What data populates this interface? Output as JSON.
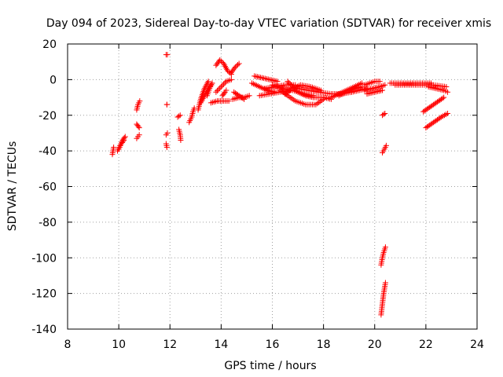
{
  "chart_data": {
    "type": "scatter",
    "title": "Day 094 of 2023, Sidereal Day-to-day VTEC variation (SDTVAR) for receiver xmis",
    "xlabel": "GPS time / hours",
    "ylabel": "SDTVAR / TECUs",
    "xlim": [
      8,
      24
    ],
    "ylim": [
      -140,
      20
    ],
    "xticks": [
      "8",
      "10",
      "12",
      "14",
      "16",
      "18",
      "20",
      "22",
      "24"
    ],
    "yticks": [
      "20",
      "0",
      "-20",
      "-40",
      "-60",
      "-80",
      "-100",
      "-120",
      "-140"
    ],
    "grid": true,
    "marker": "+",
    "color": "#ff0000",
    "segments": [
      [
        [
          9.75,
          -42
        ],
        [
          9.8,
          -38
        ]
      ],
      [
        [
          9.95,
          -40
        ],
        [
          10.05,
          -37
        ],
        [
          10.15,
          -34
        ],
        [
          10.25,
          -32
        ]
      ],
      [
        [
          10.0,
          -39
        ],
        [
          10.1,
          -36
        ],
        [
          10.2,
          -34
        ]
      ],
      [
        [
          10.7,
          -17
        ],
        [
          10.75,
          -14
        ],
        [
          10.82,
          -12
        ]
      ],
      [
        [
          10.7,
          -33
        ],
        [
          10.75,
          -32
        ],
        [
          10.8,
          -31
        ]
      ],
      [
        [
          10.7,
          -25
        ],
        [
          10.8,
          -27
        ]
      ],
      [
        [
          11.85,
          14
        ],
        [
          11.9,
          14
        ]
      ],
      [
        [
          11.88,
          -14
        ],
        [
          11.88,
          -14
        ]
      ],
      [
        [
          11.85,
          -31
        ],
        [
          11.9,
          -30
        ]
      ],
      [
        [
          11.85,
          -36
        ],
        [
          11.88,
          -38
        ]
      ],
      [
        [
          12.3,
          -21
        ],
        [
          12.4,
          -20
        ]
      ],
      [
        [
          12.35,
          -28
        ],
        [
          12.4,
          -31
        ],
        [
          12.42,
          -34
        ]
      ],
      [
        [
          12.75,
          -24
        ],
        [
          12.85,
          -21
        ],
        [
          12.9,
          -18
        ],
        [
          12.95,
          -16
        ]
      ],
      [
        [
          13.1,
          -17
        ],
        [
          13.2,
          -11
        ],
        [
          13.35,
          -5
        ],
        [
          13.5,
          -1
        ]
      ],
      [
        [
          13.2,
          -13
        ],
        [
          13.35,
          -9
        ],
        [
          13.5,
          -5
        ],
        [
          13.65,
          -2
        ]
      ],
      [
        [
          13.45,
          -9
        ],
        [
          13.55,
          -5
        ],
        [
          13.65,
          -2
        ]
      ],
      [
        [
          13.6,
          -13
        ],
        [
          13.85,
          -12
        ],
        [
          14.1,
          -12
        ],
        [
          14.3,
          -12
        ]
      ],
      [
        [
          13.8,
          8
        ],
        [
          13.95,
          11
        ],
        [
          14.1,
          9
        ],
        [
          14.25,
          5
        ],
        [
          14.4,
          3
        ]
      ],
      [
        [
          13.8,
          -7
        ],
        [
          14.0,
          -4
        ],
        [
          14.2,
          -1
        ],
        [
          14.4,
          0
        ]
      ],
      [
        [
          14.05,
          -9
        ],
        [
          14.15,
          -7
        ],
        [
          14.2,
          -6
        ]
      ],
      [
        [
          14.4,
          4
        ],
        [
          14.55,
          7
        ],
        [
          14.7,
          9
        ]
      ],
      [
        [
          14.45,
          -11
        ],
        [
          14.7,
          -10
        ],
        [
          14.9,
          -10
        ],
        [
          15.1,
          -9
        ]
      ],
      [
        [
          14.5,
          -7
        ],
        [
          14.7,
          -9
        ],
        [
          14.9,
          -11
        ]
      ],
      [
        [
          15.2,
          -2
        ],
        [
          15.5,
          -4
        ],
        [
          15.8,
          -6
        ],
        [
          16.1,
          -7
        ]
      ],
      [
        [
          15.3,
          2
        ],
        [
          15.6,
          1
        ],
        [
          15.9,
          0
        ],
        [
          16.2,
          -1
        ]
      ],
      [
        [
          15.5,
          -9
        ],
        [
          15.9,
          -8
        ],
        [
          16.3,
          -7
        ],
        [
          16.7,
          -6
        ]
      ],
      [
        [
          15.7,
          -5
        ],
        [
          16.1,
          -4
        ],
        [
          16.5,
          -3
        ],
        [
          16.9,
          -3
        ]
      ],
      [
        [
          16.0,
          -3
        ],
        [
          16.4,
          -5
        ],
        [
          16.8,
          -6
        ],
        [
          17.2,
          -8
        ],
        [
          17.6,
          -9
        ]
      ],
      [
        [
          16.3,
          -6
        ],
        [
          16.6,
          -9
        ],
        [
          16.9,
          -12
        ],
        [
          17.3,
          -14
        ],
        [
          17.7,
          -14
        ],
        [
          18.0,
          -11
        ]
      ],
      [
        [
          16.5,
          -8
        ],
        [
          16.8,
          -5
        ],
        [
          17.1,
          -3
        ],
        [
          17.5,
          -4
        ],
        [
          17.9,
          -6
        ]
      ],
      [
        [
          16.6,
          -1
        ],
        [
          16.8,
          -4
        ],
        [
          17.0,
          -7
        ],
        [
          17.3,
          -9
        ],
        [
          17.6,
          -10
        ],
        [
          18.0,
          -10
        ],
        [
          18.3,
          -11
        ]
      ],
      [
        [
          17.0,
          -5
        ],
        [
          17.4,
          -6
        ],
        [
          17.8,
          -7
        ],
        [
          18.3,
          -8
        ],
        [
          18.7,
          -8
        ],
        [
          19.1,
          -7
        ]
      ],
      [
        [
          18.3,
          -10
        ],
        [
          18.6,
          -8
        ],
        [
          18.9,
          -6
        ],
        [
          19.2,
          -4
        ],
        [
          19.5,
          -2
        ]
      ],
      [
        [
          18.6,
          -9
        ],
        [
          18.9,
          -7
        ],
        [
          19.2,
          -5
        ],
        [
          19.5,
          -4
        ]
      ],
      [
        [
          19.1,
          -7
        ],
        [
          19.4,
          -6
        ],
        [
          19.7,
          -5
        ]
      ],
      [
        [
          19.6,
          -3
        ],
        [
          19.8,
          -2
        ],
        [
          20.0,
          -1
        ],
        [
          20.2,
          -1
        ]
      ],
      [
        [
          19.6,
          -6
        ],
        [
          19.9,
          -5
        ],
        [
          20.2,
          -4
        ],
        [
          20.4,
          -3
        ]
      ],
      [
        [
          19.7,
          -8
        ],
        [
          20.0,
          -7
        ],
        [
          20.3,
          -6
        ]
      ],
      [
        [
          20.3,
          -20
        ],
        [
          20.4,
          -19
        ]
      ],
      [
        [
          20.3,
          -41
        ],
        [
          20.38,
          -39
        ],
        [
          20.45,
          -37
        ]
      ],
      [
        [
          20.25,
          -104
        ],
        [
          20.3,
          -100
        ],
        [
          20.35,
          -97
        ],
        [
          20.42,
          -94
        ]
      ],
      [
        [
          20.25,
          -132
        ],
        [
          20.3,
          -126
        ],
        [
          20.35,
          -120
        ],
        [
          20.42,
          -114
        ]
      ],
      [
        [
          20.6,
          -2
        ],
        [
          21.0,
          -2
        ],
        [
          21.4,
          -2
        ],
        [
          21.8,
          -2
        ],
        [
          22.2,
          -2
        ]
      ],
      [
        [
          20.8,
          -3
        ],
        [
          21.3,
          -3
        ],
        [
          21.8,
          -3
        ],
        [
          22.3,
          -3
        ],
        [
          22.8,
          -4
        ]
      ],
      [
        [
          21.9,
          -18
        ],
        [
          22.1,
          -16
        ],
        [
          22.3,
          -14
        ],
        [
          22.5,
          -12
        ],
        [
          22.7,
          -10
        ]
      ],
      [
        [
          22.0,
          -27
        ],
        [
          22.2,
          -25
        ],
        [
          22.4,
          -23
        ],
        [
          22.6,
          -21
        ],
        [
          22.85,
          -19
        ]
      ],
      [
        [
          22.1,
          -4
        ],
        [
          22.4,
          -5
        ],
        [
          22.7,
          -6
        ],
        [
          22.85,
          -7
        ]
      ]
    ]
  }
}
